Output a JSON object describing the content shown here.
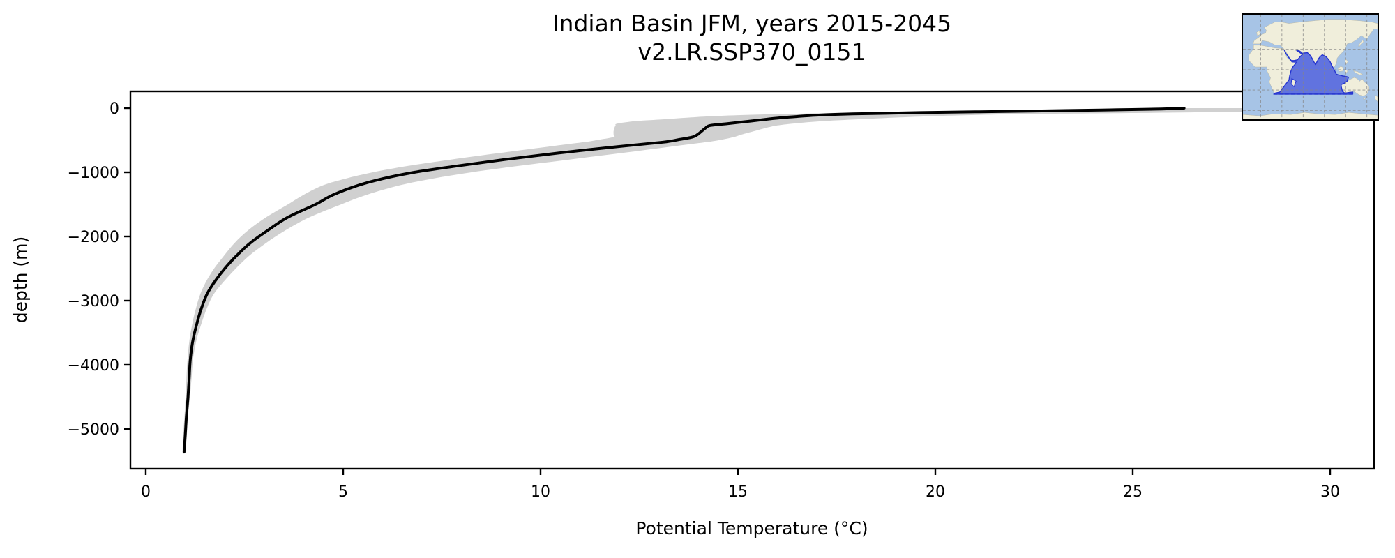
{
  "figure": {
    "title": "Indian Basin JFM, years 2015-2045",
    "subtitle": "v2.LR.SSP370_0151",
    "background": "#ffffff"
  },
  "chart_data": {
    "type": "line",
    "title": "Indian Basin JFM, years 2015-2045",
    "subtitle": "v2.LR.SSP370_0151",
    "xlabel": "Potential Temperature (°C)",
    "ylabel": "depth (m)",
    "xlim": [
      -0.5,
      31.1
    ],
    "ylim": [
      -5620,
      265
    ],
    "xticks": [
      0,
      5,
      10,
      15,
      20,
      25,
      30
    ],
    "yticks": [
      0,
      -1000,
      -2000,
      -3000,
      -4000,
      -5000
    ],
    "grid": false,
    "legend_position": "none",
    "line_color": "#000000",
    "line_width": 4,
    "band_color": "#d0d0d0",
    "profile": {
      "depth_m": [
        0,
        -15,
        -30,
        -50,
        -70,
        -90,
        -110,
        -130,
        -150,
        -175,
        -200,
        -240,
        -270,
        -310,
        -360,
        -410,
        -450,
        -490,
        -530,
        -600,
        -700,
        -800,
        -900,
        -1000,
        -1100,
        -1200,
        -1350,
        -1500,
        -1700,
        -1900,
        -2100,
        -2300,
        -2500,
        -2700,
        -2900,
        -3100,
        -3300,
        -3600,
        -3900,
        -4200,
        -4500,
        -4800,
        -5100,
        -5360
      ],
      "mean_c": [
        26.3,
        25.6,
        24.2,
        21.9,
        19.6,
        17.9,
        17.0,
        16.5,
        16.1,
        15.7,
        15.35,
        14.75,
        14.3,
        14.18,
        14.08,
        13.98,
        13.85,
        13.5,
        13.1,
        11.95,
        10.45,
        9.1,
        7.9,
        6.8,
        6.0,
        5.4,
        4.75,
        4.3,
        3.6,
        3.1,
        2.65,
        2.3,
        2.0,
        1.75,
        1.55,
        1.42,
        1.32,
        1.2,
        1.13,
        1.1,
        1.07,
        1.03,
        1.0,
        0.97
      ],
      "min_c": [
        24.6,
        24.0,
        22.6,
        20.1,
        17.9,
        16.3,
        15.0,
        14.2,
        13.7,
        13.1,
        12.45,
        11.95,
        11.9,
        11.87,
        11.85,
        11.85,
        11.85,
        11.5,
        11.1,
        10.2,
        8.95,
        7.75,
        6.65,
        5.75,
        5.05,
        4.5,
        4.0,
        3.6,
        3.05,
        2.6,
        2.25,
        1.98,
        1.73,
        1.53,
        1.38,
        1.28,
        1.2,
        1.11,
        1.06,
        1.03,
        1.01,
        0.98,
        0.95,
        0.93
      ],
      "max_c": [
        29.8,
        29.75,
        29.5,
        28.6,
        26.0,
        22.5,
        20.8,
        19.7,
        18.9,
        18.0,
        17.2,
        16.4,
        16.0,
        15.7,
        15.4,
        15.1,
        14.9,
        14.6,
        14.2,
        13.3,
        12.05,
        10.75,
        9.45,
        8.25,
        7.25,
        6.45,
        5.6,
        4.95,
        4.15,
        3.55,
        3.05,
        2.62,
        2.28,
        1.98,
        1.72,
        1.56,
        1.44,
        1.29,
        1.2,
        1.16,
        1.12,
        1.07,
        1.04,
        1.01
      ]
    },
    "series": [
      {
        "name": "ensemble mean potential temperature",
        "style": "solid black line"
      },
      {
        "name": "min–max envelope",
        "style": "grey shaded band"
      }
    ]
  },
  "inset_map": {
    "name": "Indian Basin location map",
    "highlighted_region": "Indian Basin",
    "colors": {
      "ocean": "#a7c4e6",
      "land": "#f0eedb",
      "basin_fill": "#5565dd",
      "basin_border": "#2433cf",
      "gridline": "#858585",
      "frame": "#000000"
    }
  }
}
